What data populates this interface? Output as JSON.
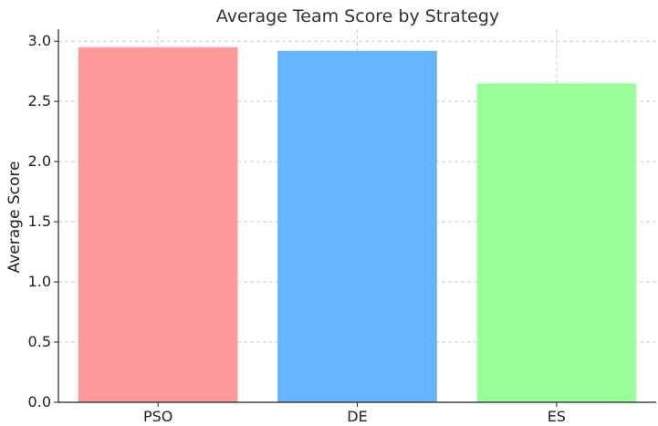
{
  "chart_data": {
    "type": "bar",
    "title": "Average Team Score by Strategy",
    "xlabel": "",
    "ylabel": "Average Score",
    "categories": [
      "PSO",
      "DE",
      "ES"
    ],
    "values": [
      2.95,
      2.92,
      2.65
    ],
    "colors": [
      "#ff9999",
      "#66b3ff",
      "#99ff99"
    ],
    "ylim": [
      0,
      3.1
    ],
    "yticks": [
      0.0,
      0.5,
      1.0,
      1.5,
      2.0,
      2.5,
      3.0
    ],
    "ytick_labels": [
      "0.0",
      "0.5",
      "1.0",
      "1.5",
      "2.0",
      "2.5",
      "3.0"
    ],
    "grid": true,
    "legend": "none"
  }
}
